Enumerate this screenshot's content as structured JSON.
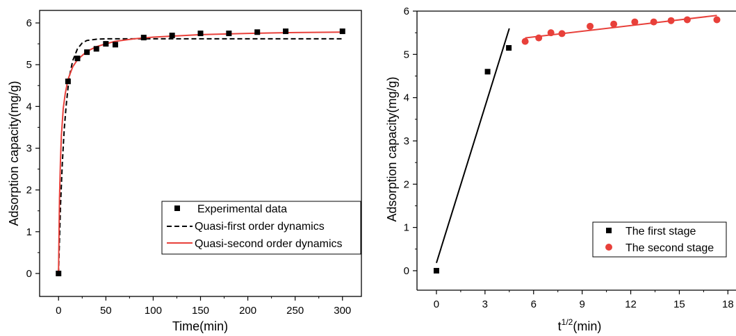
{
  "chart_data": [
    {
      "type": "scatter",
      "title": "",
      "xlabel": "Time(min)",
      "ylabel": "Adsorption capacity(mg/g)",
      "xlim": [
        -20,
        320
      ],
      "ylim": [
        -0.55,
        6.3
      ],
      "xticks": [
        0,
        50,
        100,
        150,
        200,
        250,
        300
      ],
      "yticks": [
        0,
        1,
        2,
        3,
        4,
        5,
        6
      ],
      "grid": false,
      "legend_position": "bottom-right",
      "series": [
        {
          "name": "Experimental data",
          "kind": "scatter",
          "marker": "square",
          "color": "#000000",
          "x": [
            0,
            10,
            20,
            30,
            40,
            50,
            60,
            90,
            120,
            150,
            180,
            210,
            240,
            300
          ],
          "y": [
            0,
            4.6,
            5.15,
            5.3,
            5.38,
            5.5,
            5.48,
            5.65,
            5.7,
            5.75,
            5.75,
            5.78,
            5.8,
            5.8
          ]
        },
        {
          "name": "Quasi-first order dynamics",
          "kind": "line",
          "dash": true,
          "color": "#000000",
          "x": [
            0,
            2,
            4,
            6,
            8,
            10,
            12,
            15,
            20,
            25,
            30,
            40,
            50,
            60,
            80,
            100,
            150,
            200,
            250,
            300
          ],
          "y": [
            0,
            1.6,
            2.65,
            3.45,
            4.0,
            4.45,
            4.78,
            5.1,
            5.38,
            5.52,
            5.58,
            5.61,
            5.62,
            5.62,
            5.62,
            5.62,
            5.62,
            5.62,
            5.62,
            5.62
          ]
        },
        {
          "name": "Quasi-second order dynamics",
          "kind": "line",
          "dash": false,
          "color": "#e8403a",
          "x": [
            0,
            1,
            2,
            3,
            5,
            7,
            10,
            15,
            20,
            30,
            40,
            50,
            60,
            80,
            100,
            150,
            200,
            250,
            300
          ],
          "y": [
            0,
            1.8,
            2.7,
            3.3,
            3.95,
            4.3,
            4.65,
            4.95,
            5.12,
            5.32,
            5.43,
            5.5,
            5.56,
            5.62,
            5.66,
            5.72,
            5.75,
            5.77,
            5.78
          ]
        }
      ]
    },
    {
      "type": "scatter",
      "title": "",
      "xlabel": "t",
      "xlabel_sup": "1/2",
      "xlabel_suffix": "(min)",
      "ylabel": "Adsorption capacity(mg/g)",
      "xlim": [
        -1.2,
        18.5
      ],
      "ylim": [
        -0.45,
        6.0
      ],
      "xticks": [
        0,
        3,
        6,
        9,
        12,
        15,
        18
      ],
      "yticks": [
        0,
        1,
        2,
        3,
        4,
        5,
        6
      ],
      "grid": false,
      "legend_position": "bottom-right",
      "series": [
        {
          "name": "The first stage",
          "kind": "scatter",
          "marker": "square",
          "color": "#000000",
          "x": [
            0,
            3.16,
            4.47
          ],
          "y": [
            0,
            4.6,
            5.15
          ],
          "fit": {
            "x": [
              0,
              4.5
            ],
            "y": [
              0.18,
              5.6
            ]
          }
        },
        {
          "name": "The second stage",
          "kind": "scatter",
          "marker": "circle",
          "color": "#e8403a",
          "x": [
            5.48,
            6.32,
            7.07,
            7.75,
            9.49,
            10.95,
            12.25,
            13.42,
            14.49,
            15.49,
            17.32
          ],
          "y": [
            5.3,
            5.38,
            5.5,
            5.48,
            5.65,
            5.7,
            5.75,
            5.75,
            5.78,
            5.8,
            5.8
          ],
          "fit": {
            "x": [
              5.48,
              17.32
            ],
            "y": [
              5.38,
              5.9
            ]
          }
        }
      ]
    }
  ]
}
